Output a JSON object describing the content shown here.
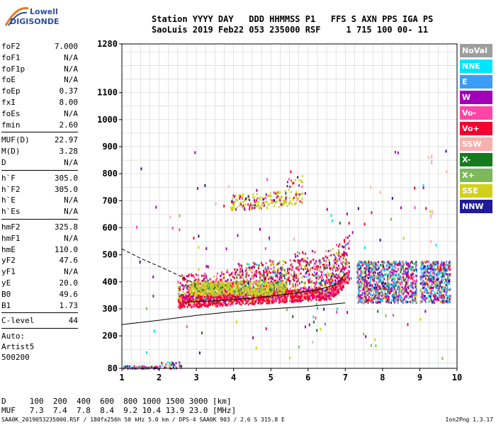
{
  "logo": {
    "line1": "Lowell",
    "line2": "DIGISONDE"
  },
  "header": {
    "line1": "Station YYYY DAY   DDD HHMMSS P1   FFS S AXN PPS IGA PS",
    "line2": "SaoLuis 2019 Feb22 053 235000 RSF     1 715 100 00- 11"
  },
  "params": {
    "group1": [
      {
        "name": "foF2",
        "value": "7.000"
      },
      {
        "name": "foF1",
        "value": "N/A"
      },
      {
        "name": "foF1p",
        "value": "N/A"
      },
      {
        "name": "foE",
        "value": "N/A"
      },
      {
        "name": "foEp",
        "value": "0.37"
      },
      {
        "name": "fxI",
        "value": "8.00"
      },
      {
        "name": "foEs",
        "value": "N/A"
      },
      {
        "name": "fmin",
        "value": "2.60"
      }
    ],
    "group2": [
      {
        "name": "MUF(D)",
        "value": "22.97"
      },
      {
        "name": "M(D)",
        "value": "3.28"
      },
      {
        "name": "D",
        "value": "N/A"
      }
    ],
    "group3": [
      {
        "name": "h`F",
        "value": "305.0"
      },
      {
        "name": "h`F2",
        "value": "305.0"
      },
      {
        "name": "h`E",
        "value": "N/A"
      },
      {
        "name": "h`Es",
        "value": "N/A"
      }
    ],
    "group4": [
      {
        "name": "hmF2",
        "value": "325.8"
      },
      {
        "name": "hmF1",
        "value": "N/A"
      },
      {
        "name": "hmE",
        "value": "110.0"
      },
      {
        "name": "yF2",
        "value": "47.6"
      },
      {
        "name": "yF1",
        "value": "N/A"
      },
      {
        "name": "yE",
        "value": "20.0"
      },
      {
        "name": "B0",
        "value": "49.6"
      },
      {
        "name": "B1",
        "value": "1.73"
      }
    ],
    "group5": [
      {
        "name": "C-level",
        "value": "44"
      }
    ],
    "auto": [
      "Auto:",
      "Artist5",
      "500200"
    ]
  },
  "legend": [
    {
      "label": "NoVal",
      "color": "#9e9e9e"
    },
    {
      "label": "NNE",
      "color": "#00e5ff"
    },
    {
      "label": "E",
      "color": "#3d9cf5"
    },
    {
      "label": "W",
      "color": "#a100b8"
    },
    {
      "label": "Vo-",
      "color": "#ff45a6"
    },
    {
      "label": "Vo+",
      "color": "#f50032"
    },
    {
      "label": "SSW",
      "color": "#f7b0ad"
    },
    {
      "label": "X-",
      "color": "#167a1e"
    },
    {
      "label": "X+",
      "color": "#7db85a"
    },
    {
      "label": "SSE",
      "color": "#d1d11c"
    },
    {
      "label": "NNW",
      "color": "#1f1a99"
    }
  ],
  "chart_data": {
    "type": "scatter",
    "title": "",
    "xlabel": "",
    "ylabel": "",
    "xlim": [
      1,
      10
    ],
    "ylim": [
      80,
      1280
    ],
    "grid": true,
    "x_ticks": [
      1,
      2,
      3,
      4,
      5,
      6,
      7,
      8,
      9,
      10
    ],
    "y_ticks": [
      80,
      200,
      300,
      400,
      500,
      600,
      700,
      800,
      900,
      1000,
      1100,
      1280
    ],
    "profile_solid": [
      [
        1,
        242
      ],
      [
        2,
        258
      ],
      [
        3,
        276
      ],
      [
        4,
        290
      ],
      [
        5,
        300
      ],
      [
        6,
        309
      ],
      [
        7,
        322
      ]
    ],
    "profile_dashed": [
      [
        1,
        522
      ],
      [
        1.5,
        487
      ],
      [
        2,
        457
      ],
      [
        2.5,
        426
      ],
      [
        3,
        390
      ]
    ],
    "trace": [
      [
        2.7,
        325
      ],
      [
        3.5,
        330
      ],
      [
        4.5,
        340
      ],
      [
        5.5,
        355
      ],
      [
        6.3,
        372
      ],
      [
        6.8,
        392
      ],
      [
        7.0,
        432
      ]
    ],
    "clusters": [
      {
        "name": "O-trace",
        "x": [
          2.5,
          7.0
        ],
        "y": [
          300,
          500
        ]
      },
      {
        "name": "F2-high",
        "x": [
          7.3,
          9.8
        ],
        "y": [
          320,
          480
        ]
      },
      {
        "name": "2-hop",
        "x": [
          4.0,
          5.8
        ],
        "y": [
          660,
          780
        ]
      },
      {
        "name": "E-region",
        "x": [
          1.0,
          2.6
        ],
        "y": [
          80,
          110
        ]
      }
    ]
  },
  "footer": {
    "line1": "D     100  200  400  600  800 1000 1500 3000 [km]",
    "line2": "MUF   7.3  7.4  7.8  8.4  9.2 10.4 13.9 23.0 [MHz]",
    "file": "SAA0K_2019053235000.RSF / 180fx256h 50 kHz 5.0 km / DPS-4 SAA0K 903 / 2.6 S 315.8 E",
    "version": "Ion2Png 1.3.17"
  }
}
